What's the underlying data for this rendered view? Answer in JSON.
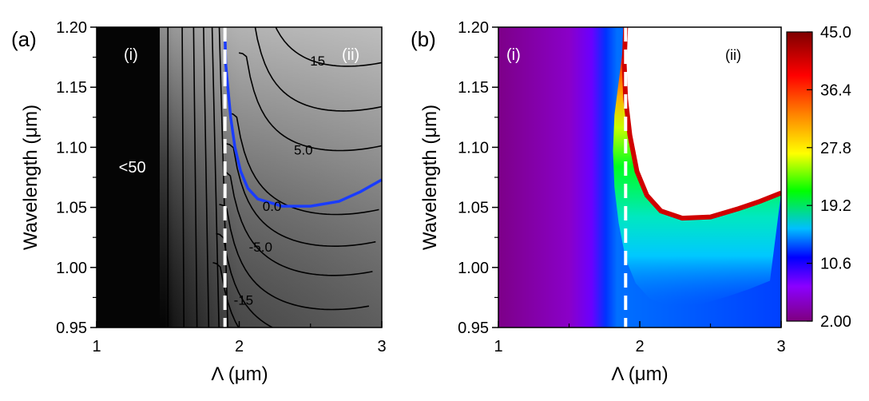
{
  "chart_data": [
    {
      "type": "heatmap",
      "panel_label": "(a)",
      "xlabel": "Λ (μm)",
      "ylabel": "Wavelength (μm)",
      "xlim": [
        1,
        3
      ],
      "ylim": [
        0.95,
        1.2
      ],
      "x_ticks": [
        "1",
        "2",
        "3"
      ],
      "y_ticks": [
        "0.95",
        "1.00",
        "1.05",
        "1.10",
        "1.15",
        "1.20"
      ],
      "dashed_line_x": 1.9,
      "region_labels": [
        "(i)",
        "(ii)"
      ],
      "contour_labels": [
        {
          "text": "<50",
          "x": 1.25,
          "y": 1.083
        },
        {
          "text": "15",
          "x": 2.55,
          "y": 1.172
        },
        {
          "text": "5.0",
          "x": 2.45,
          "y": 1.098
        },
        {
          "text": "0.0",
          "x": 2.23,
          "y": 1.051
        },
        {
          "text": "-5.0",
          "x": 2.15,
          "y": 1.017
        },
        {
          "text": "-15",
          "x": 2.03,
          "y": 0.973
        }
      ],
      "zero_contour": [
        [
          1.9,
          1.196
        ],
        [
          1.905,
          1.17
        ],
        [
          1.92,
          1.15
        ],
        [
          1.94,
          1.125
        ],
        [
          1.97,
          1.1
        ],
        [
          2.01,
          1.08
        ],
        [
          2.06,
          1.066
        ],
        [
          2.13,
          1.057
        ],
        [
          2.3,
          1.051
        ],
        [
          2.5,
          1.051
        ],
        [
          2.7,
          1.055
        ],
        [
          2.85,
          1.063
        ],
        [
          3.0,
          1.073
        ]
      ]
    },
    {
      "type": "heatmap",
      "panel_label": "(b)",
      "xlabel": "Λ (μm)",
      "ylabel": "Wavelength (μm)",
      "xlim": [
        1,
        3
      ],
      "ylim": [
        0.95,
        1.2
      ],
      "x_ticks": [
        "1",
        "2",
        "3"
      ],
      "y_ticks": [
        "0.95",
        "1.00",
        "1.05",
        "1.10",
        "1.15",
        "1.20"
      ],
      "dashed_line_x": 1.9,
      "region_labels": [
        "(i)",
        "(ii)"
      ],
      "colorbar": {
        "min": 2.0,
        "max": 45.0,
        "ticks": [
          "45.0",
          "36.4",
          "27.8",
          "19.2",
          "10.6",
          "2.00"
        ],
        "colors": [
          "#7f007f",
          "#8b00ff",
          "#0000ff",
          "#00bfff",
          "#00ff00",
          "#ffff00",
          "#ff7f00",
          "#ff0000",
          "#7f0000"
        ]
      },
      "cutoff_edge": [
        [
          1.9,
          1.2
        ],
        [
          1.89,
          1.17
        ],
        [
          1.9,
          1.14
        ],
        [
          1.93,
          1.11
        ],
        [
          1.98,
          1.08
        ],
        [
          2.05,
          1.06
        ],
        [
          2.15,
          1.047
        ],
        [
          2.3,
          1.041
        ],
        [
          2.5,
          1.042
        ],
        [
          2.7,
          1.049
        ],
        [
          2.85,
          1.055
        ],
        [
          3.0,
          1.062
        ]
      ]
    }
  ]
}
